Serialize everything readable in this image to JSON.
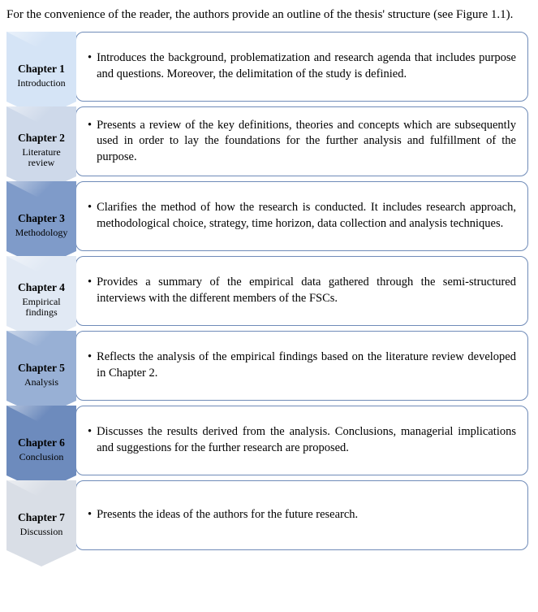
{
  "intro_text": "For the convenience of the reader, the authors provide an outline of the thesis' structure (see Figure 1.1).",
  "border_color": "#6f8bb8",
  "chapters": [
    {
      "num": "Chapter 1",
      "sub": "Introduction",
      "tab_bg": "#d5e4f6",
      "desc": "Introduces the background, problematization and research agenda that includes purpose and questions. Moreover, the delimitation of the study is definied."
    },
    {
      "num": "Chapter 2",
      "sub": "Literature review",
      "tab_bg": "#ced9ea",
      "desc": "Presents a review of the key definitions, theories and concepts which are subsequently used in order to lay the foundations for the further analysis and fulfillment of the purpose."
    },
    {
      "num": "Chapter 3",
      "sub": "Methodology",
      "tab_bg": "#7f9bc9",
      "desc": "Clarifies the method of how the research is conducted. It includes research approach, methodological choice, strategy, time horizon, data collection and analysis techniques."
    },
    {
      "num": "Chapter 4",
      "sub": "Empirical findings",
      "tab_bg": "#e1e9f4",
      "desc": "Provides a summary of the empirical data gathered through the semi-structured interviews with the different members of the FSCs."
    },
    {
      "num": "Chapter 5",
      "sub": "Analysis",
      "tab_bg": "#98b0d5",
      "desc": "Reflects the analysis of the empirical findings based on the literature review developed in Chapter 2."
    },
    {
      "num": "Chapter 6",
      "sub": "Conclusion",
      "tab_bg": "#6d8bbd",
      "desc": "Discusses the results derived from the analysis. Conclusions, managerial implications and suggestions for the further research are proposed."
    },
    {
      "num": "Chapter 7",
      "sub": "Discussion",
      "tab_bg": "#d9dee6",
      "desc": "Presents the ideas of the authors for the future research."
    }
  ]
}
